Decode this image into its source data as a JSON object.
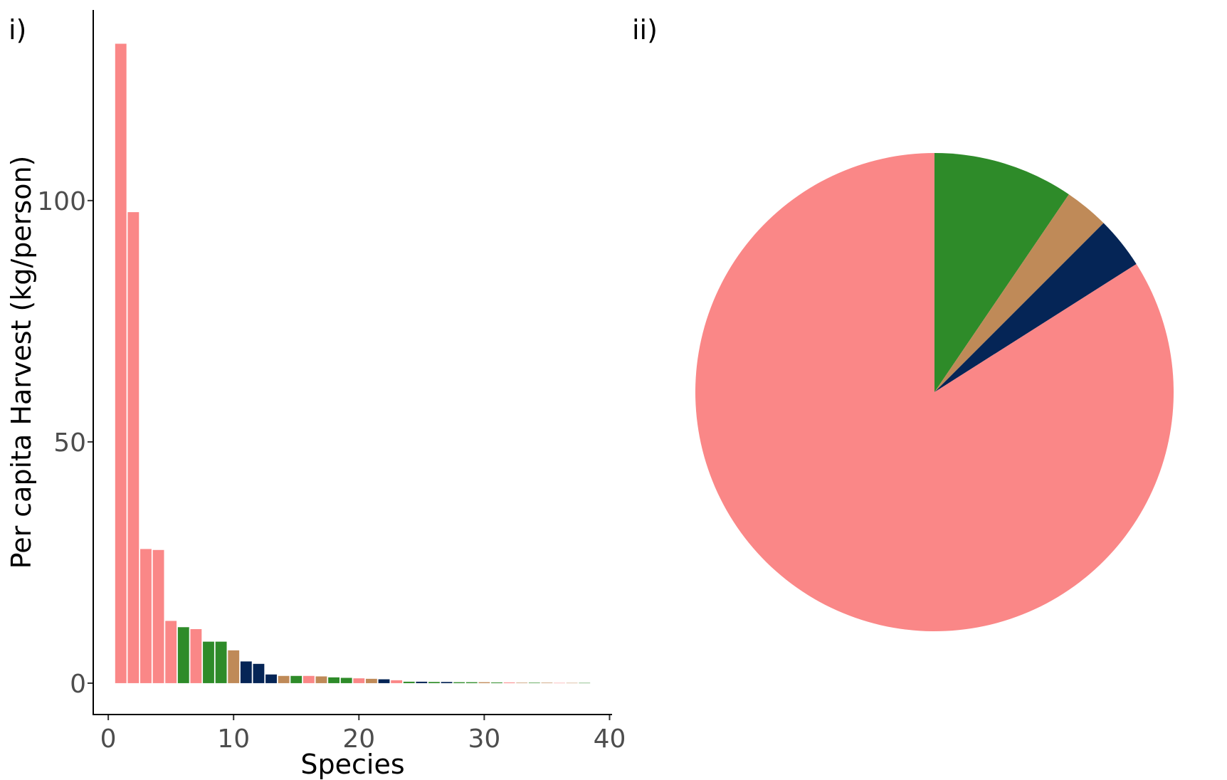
{
  "panels": {
    "bar_label": "i)",
    "pie_label": "ii)"
  },
  "colors": {
    "pink": "#fa8787",
    "green": "#2e8b29",
    "tan": "#bf8a58",
    "navy": "#052556"
  },
  "chart_data": [
    {
      "type": "bar",
      "xlabel": "Species",
      "ylabel": "Per capita Harvest (kg/person)",
      "xlim": [
        -1.2,
        40.2
      ],
      "ylim": [
        -6.5,
        139.5
      ],
      "xticks": [
        0,
        10,
        20,
        30,
        40
      ],
      "yticks": [
        0,
        50,
        100
      ],
      "x": [
        1,
        2,
        3,
        4,
        5,
        6,
        7,
        8,
        9,
        10,
        11,
        12,
        13,
        14,
        15,
        16,
        17,
        18,
        19,
        20,
        21,
        22,
        23,
        24,
        25,
        26,
        27,
        28,
        29,
        30,
        31,
        32,
        33,
        34,
        35,
        36,
        37,
        38
      ],
      "values": [
        132.5,
        97.6,
        27.8,
        27.6,
        12.9,
        11.6,
        11.2,
        8.6,
        8.6,
        6.8,
        4.5,
        4.0,
        1.8,
        1.5,
        1.5,
        1.5,
        1.4,
        1.2,
        1.1,
        1.0,
        0.9,
        0.8,
        0.6,
        0.3,
        0.3,
        0.25,
        0.25,
        0.2,
        0.2,
        0.2,
        0.15,
        0.15,
        0.1,
        0.1,
        0.1,
        0.05,
        0.05,
        0.05
      ],
      "bar_colors": [
        "pink",
        "pink",
        "pink",
        "pink",
        "pink",
        "green",
        "pink",
        "green",
        "green",
        "tan",
        "navy",
        "navy",
        "navy",
        "tan",
        "green",
        "pink",
        "tan",
        "green",
        "green",
        "pink",
        "tan",
        "navy",
        "pink",
        "green",
        "navy",
        "green",
        "navy",
        "green",
        "green",
        "tan",
        "green",
        "pink",
        "tan",
        "green",
        "tan",
        "pink",
        "tan",
        "green"
      ]
    },
    {
      "type": "pie",
      "slices": [
        {
          "value": 9.5,
          "color": "green"
        },
        {
          "value": 3.0,
          "color": "tan"
        },
        {
          "value": 3.5,
          "color": "navy"
        },
        {
          "value": 84.0,
          "color": "pink"
        }
      ]
    }
  ]
}
